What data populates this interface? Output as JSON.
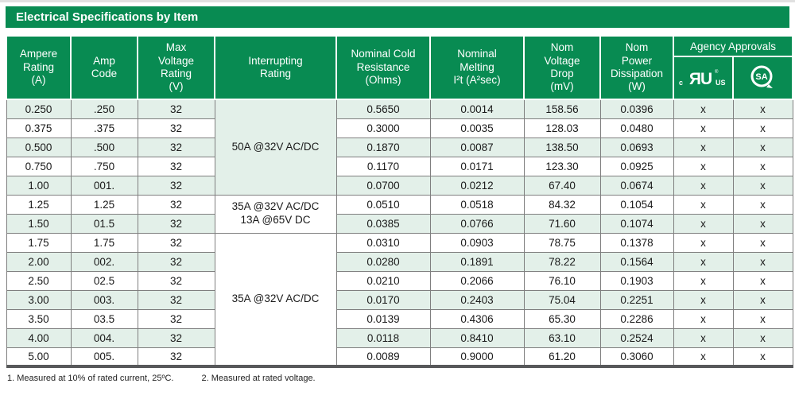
{
  "title": "Electrical Specifications by Item",
  "colors": {
    "green": "#088b52",
    "stripe": "#e3f0e9",
    "border": "#7f7f7f",
    "bottom_border": "#57585a"
  },
  "columns": {
    "ampere": "Ampere\nRating\n(A)",
    "code": "Amp\nCode",
    "voltage": "Max\nVoltage\nRating\n(V)",
    "interrupting": "Interrupting\nRating",
    "resistance": "Nominal Cold\nResistance\n(Ohms)",
    "melting": "Nominal\nMelting\nI²t (A²sec)",
    "drop": "Nom\nVoltage\nDrop\n(mV)",
    "dissipation": "Nom\nPower\nDissipation\n(W)",
    "agency": "Agency Approvals"
  },
  "ul_mark": {
    "c": "c",
    "r": "R",
    "u": "U",
    "reg": "®",
    "us": "US"
  },
  "csa_mark": {
    "sa": "SA"
  },
  "groups": [
    {
      "interrupting": [
        "50A @32V AC/DC"
      ],
      "shaded": true,
      "rows": [
        {
          "ampere": "0.250",
          "code": ".250",
          "voltage": "32",
          "resistance": "0.5650",
          "melting": "0.0014",
          "drop": "158.56",
          "dissipation": "0.0396",
          "ul": "x",
          "csa": "x"
        },
        {
          "ampere": "0.375",
          "code": ".375",
          "voltage": "32",
          "resistance": "0.3000",
          "melting": "0.0035",
          "drop": "128.03",
          "dissipation": "0.0480",
          "ul": "x",
          "csa": "x"
        },
        {
          "ampere": "0.500",
          "code": ".500",
          "voltage": "32",
          "resistance": "0.1870",
          "melting": "0.0087",
          "drop": "138.50",
          "dissipation": "0.0693",
          "ul": "x",
          "csa": "x"
        },
        {
          "ampere": "0.750",
          "code": ".750",
          "voltage": "32",
          "resistance": "0.1170",
          "melting": "0.0171",
          "drop": "123.30",
          "dissipation": "0.0925",
          "ul": "x",
          "csa": "x"
        },
        {
          "ampere": "1.00",
          "code": "001.",
          "voltage": "32",
          "resistance": "0.0700",
          "melting": "0.0212",
          "drop": "67.40",
          "dissipation": "0.0674",
          "ul": "x",
          "csa": "x"
        }
      ]
    },
    {
      "interrupting": [
        "35A @32V AC/DC",
        "13A @65V DC"
      ],
      "shaded": false,
      "rows": [
        {
          "ampere": "1.25",
          "code": "1.25",
          "voltage": "32",
          "resistance": "0.0510",
          "melting": "0.0518",
          "drop": "84.32",
          "dissipation": "0.1054",
          "ul": "x",
          "csa": "x"
        },
        {
          "ampere": "1.50",
          "code": "01.5",
          "voltage": "32",
          "resistance": "0.0385",
          "melting": "0.0766",
          "drop": "71.60",
          "dissipation": "0.1074",
          "ul": "x",
          "csa": "x"
        }
      ]
    },
    {
      "interrupting": [
        "35A @32V AC/DC"
      ],
      "shaded": false,
      "rows": [
        {
          "ampere": "1.75",
          "code": "1.75",
          "voltage": "32",
          "resistance": "0.0310",
          "melting": "0.0903",
          "drop": "78.75",
          "dissipation": "0.1378",
          "ul": "x",
          "csa": "x"
        },
        {
          "ampere": "2.00",
          "code": "002.",
          "voltage": "32",
          "resistance": "0.0280",
          "melting": "0.1891",
          "drop": "78.22",
          "dissipation": "0.1564",
          "ul": "x",
          "csa": "x"
        },
        {
          "ampere": "2.50",
          "code": "02.5",
          "voltage": "32",
          "resistance": "0.0210",
          "melting": "0.2066",
          "drop": "76.10",
          "dissipation": "0.1903",
          "ul": "x",
          "csa": "x"
        },
        {
          "ampere": "3.00",
          "code": "003.",
          "voltage": "32",
          "resistance": "0.0170",
          "melting": "0.2403",
          "drop": "75.04",
          "dissipation": "0.2251",
          "ul": "x",
          "csa": "x"
        },
        {
          "ampere": "3.50",
          "code": "03.5",
          "voltage": "32",
          "resistance": "0.0139",
          "melting": "0.4306",
          "drop": "65.30",
          "dissipation": "0.2286",
          "ul": "x",
          "csa": "x"
        },
        {
          "ampere": "4.00",
          "code": "004.",
          "voltage": "32",
          "resistance": "0.0118",
          "melting": "0.8410",
          "drop": "63.10",
          "dissipation": "0.2524",
          "ul": "x",
          "csa": "x"
        },
        {
          "ampere": "5.00",
          "code": "005.",
          "voltage": "32",
          "resistance": "0.0089",
          "melting": "0.9000",
          "drop": "61.20",
          "dissipation": "0.3060",
          "ul": "x",
          "csa": "x"
        }
      ]
    }
  ],
  "footnotes": [
    "1.  Measured at 10% of rated current, 25ºC.",
    "2. Measured at rated voltage."
  ]
}
